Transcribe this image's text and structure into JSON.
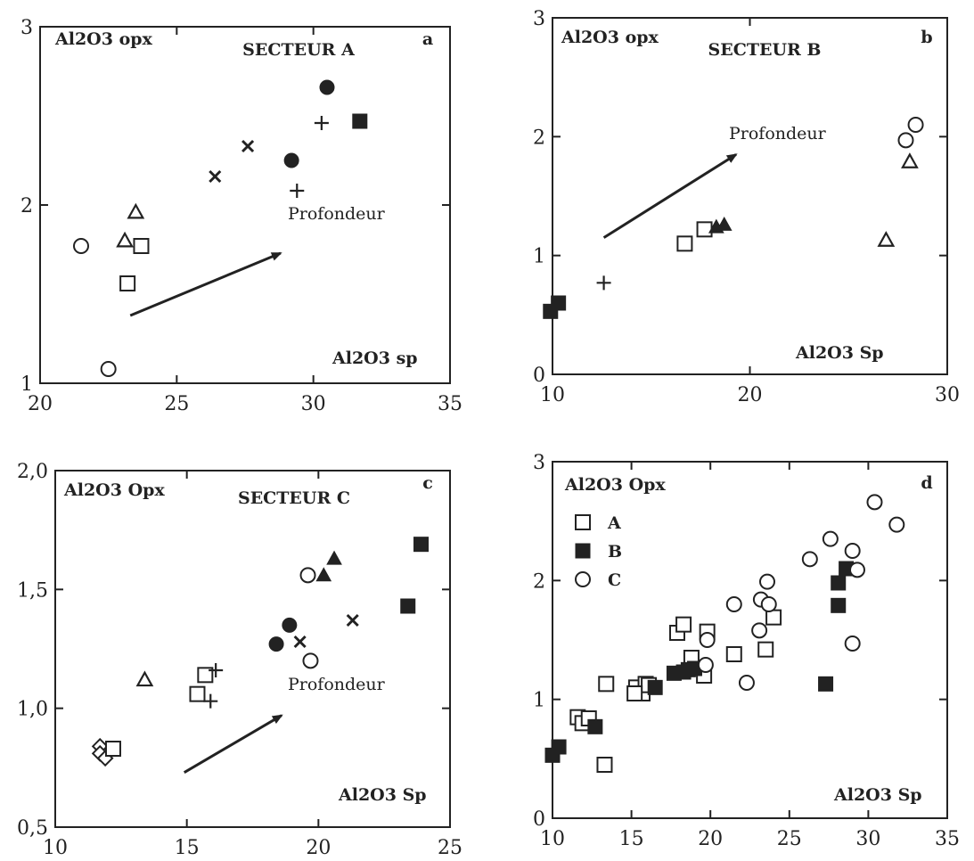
{
  "chart_data": [
    {
      "panel": "a",
      "type": "scatter",
      "title": "SECTEUR A",
      "ylabel": "Al2O3 opx",
      "xlabel": "Al2O3 sp",
      "xlim": [
        20,
        35
      ],
      "ylim": [
        1,
        3
      ],
      "xticks": [
        20,
        25,
        30,
        35
      ],
      "yticks": [
        1,
        2,
        3
      ],
      "xtick_labels": [
        "20",
        "25",
        "30",
        "35"
      ],
      "ytick_labels": [
        "1",
        "2",
        "3"
      ],
      "annotation": "Profondeur",
      "arrow": {
        "from": [
          23.3,
          1.38
        ],
        "to": [
          28.8,
          1.73
        ]
      },
      "points": [
        {
          "marker": "open-circle",
          "x": 21.5,
          "y": 1.77
        },
        {
          "marker": "open-circle",
          "x": 22.5,
          "y": 1.08
        },
        {
          "marker": "open-triangle",
          "x": 23.5,
          "y": 1.96
        },
        {
          "marker": "open-triangle",
          "x": 23.1,
          "y": 1.8
        },
        {
          "marker": "open-square",
          "x": 23.7,
          "y": 1.77
        },
        {
          "marker": "open-square",
          "x": 23.2,
          "y": 1.56
        },
        {
          "marker": "cross-x",
          "x": 26.4,
          "y": 2.16
        },
        {
          "marker": "cross-x",
          "x": 27.6,
          "y": 2.33
        },
        {
          "marker": "plus",
          "x": 29.4,
          "y": 2.08
        },
        {
          "marker": "plus",
          "x": 30.3,
          "y": 2.46
        },
        {
          "marker": "filled-circle",
          "x": 29.2,
          "y": 2.25
        },
        {
          "marker": "filled-circle",
          "x": 30.5,
          "y": 2.66
        },
        {
          "marker": "filled-square",
          "x": 31.7,
          "y": 2.47
        }
      ]
    },
    {
      "panel": "b",
      "type": "scatter",
      "title": "SECTEUR B",
      "ylabel": "Al2O3 opx",
      "xlabel": "Al2O3 Sp",
      "xlim": [
        10,
        30
      ],
      "ylim": [
        0,
        3
      ],
      "xticks": [
        10,
        20,
        30
      ],
      "yticks": [
        0,
        1,
        2,
        3
      ],
      "xtick_labels": [
        "10",
        "20",
        "30"
      ],
      "ytick_labels": [
        "0",
        "1",
        "2",
        "3"
      ],
      "annotation": "Profondeur",
      "arrow": {
        "from": [
          12.6,
          1.15
        ],
        "to": [
          19.3,
          1.85
        ]
      },
      "points": [
        {
          "marker": "filled-square",
          "x": 9.9,
          "y": 0.53
        },
        {
          "marker": "filled-square",
          "x": 10.3,
          "y": 0.6
        },
        {
          "marker": "plus",
          "x": 12.6,
          "y": 0.77
        },
        {
          "marker": "open-square",
          "x": 16.7,
          "y": 1.1
        },
        {
          "marker": "open-square",
          "x": 17.7,
          "y": 1.22
        },
        {
          "marker": "filled-triangle",
          "x": 18.3,
          "y": 1.24
        },
        {
          "marker": "filled-triangle",
          "x": 18.7,
          "y": 1.26
        },
        {
          "marker": "open-triangle",
          "x": 26.9,
          "y": 1.13
        },
        {
          "marker": "open-circle",
          "x": 27.9,
          "y": 1.97
        },
        {
          "marker": "open-circle",
          "x": 28.4,
          "y": 2.1
        },
        {
          "marker": "open-triangle",
          "x": 28.1,
          "y": 1.79
        }
      ]
    },
    {
      "panel": "c",
      "type": "scatter",
      "title": "SECTEUR C",
      "ylabel": "Al2O3 Opx",
      "xlabel": "Al2O3 Sp",
      "xlim": [
        10,
        25
      ],
      "ylim": [
        0.5,
        2.0
      ],
      "xticks": [
        10,
        15,
        20,
        25
      ],
      "yticks": [
        0.5,
        1.0,
        1.5,
        2.0
      ],
      "xtick_labels": [
        "10",
        "15",
        "20",
        "25"
      ],
      "ytick_labels": [
        "0,5",
        "1,0",
        "1,5",
        "2,0"
      ],
      "annotation": "Profondeur",
      "arrow": {
        "from": [
          14.9,
          0.73
        ],
        "to": [
          18.6,
          0.97
        ]
      },
      "points": [
        {
          "marker": "open-diamond",
          "x": 11.7,
          "y": 0.84
        },
        {
          "marker": "open-diamond",
          "x": 11.7,
          "y": 0.81
        },
        {
          "marker": "open-diamond",
          "x": 11.9,
          "y": 0.79
        },
        {
          "marker": "open-square",
          "x": 12.2,
          "y": 0.83
        },
        {
          "marker": "open-triangle",
          "x": 13.4,
          "y": 1.12
        },
        {
          "marker": "open-square",
          "x": 15.7,
          "y": 1.14
        },
        {
          "marker": "open-square",
          "x": 15.4,
          "y": 1.06
        },
        {
          "marker": "plus",
          "x": 16.1,
          "y": 1.16
        },
        {
          "marker": "plus",
          "x": 15.9,
          "y": 1.03
        },
        {
          "marker": "filled-circle",
          "x": 18.4,
          "y": 1.27
        },
        {
          "marker": "filled-circle",
          "x": 18.9,
          "y": 1.35
        },
        {
          "marker": "cross-x",
          "x": 19.3,
          "y": 1.28
        },
        {
          "marker": "open-circle",
          "x": 19.7,
          "y": 1.2
        },
        {
          "marker": "open-circle",
          "x": 19.6,
          "y": 1.56
        },
        {
          "marker": "filled-triangle",
          "x": 20.2,
          "y": 1.56
        },
        {
          "marker": "filled-triangle",
          "x": 20.6,
          "y": 1.63
        },
        {
          "marker": "cross-x",
          "x": 21.3,
          "y": 1.37
        },
        {
          "marker": "filled-square",
          "x": 23.4,
          "y": 1.43
        },
        {
          "marker": "filled-square",
          "x": 23.9,
          "y": 1.69
        }
      ]
    },
    {
      "panel": "d",
      "type": "scatter",
      "ylabel": "Al2O3 Opx",
      "xlabel": "Al2O3 Sp",
      "xlim": [
        10,
        35
      ],
      "ylim": [
        0,
        3
      ],
      "xticks": [
        10,
        15,
        20,
        25,
        30,
        35
      ],
      "yticks": [
        0,
        1,
        2,
        3
      ],
      "xtick_labels": [
        "10",
        "15",
        "20",
        "25",
        "30",
        "35"
      ],
      "ytick_labels": [
        "0",
        "1",
        "2",
        "3"
      ],
      "legend": [
        {
          "label": "A",
          "marker": "open-square"
        },
        {
          "label": "B",
          "marker": "filled-square"
        },
        {
          "label": "C",
          "marker": "open-circle"
        }
      ],
      "series": [
        {
          "name": "A",
          "marker": "open-square",
          "points": [
            [
              11.6,
              0.85
            ],
            [
              11.9,
              0.8
            ],
            [
              12.3,
              0.84
            ],
            [
              13.3,
              0.45
            ],
            [
              13.4,
              1.13
            ],
            [
              15.3,
              1.1
            ],
            [
              15.7,
              1.05
            ],
            [
              15.9,
              1.13
            ],
            [
              16.1,
              1.12
            ],
            [
              17.9,
              1.56
            ],
            [
              18.3,
              1.63
            ],
            [
              18.8,
              1.35
            ],
            [
              19.6,
              1.2
            ],
            [
              19.8,
              1.57
            ],
            [
              21.5,
              1.38
            ],
            [
              23.5,
              1.42
            ],
            [
              24.0,
              1.69
            ],
            [
              15.2,
              1.05
            ]
          ]
        },
        {
          "name": "B",
          "marker": "filled-square",
          "points": [
            [
              10.0,
              0.53
            ],
            [
              10.4,
              0.6
            ],
            [
              12.7,
              0.77
            ],
            [
              16.5,
              1.1
            ],
            [
              17.7,
              1.22
            ],
            [
              18.6,
              1.25
            ],
            [
              19.0,
              1.26
            ],
            [
              27.3,
              1.13
            ],
            [
              28.1,
              1.79
            ],
            [
              28.1,
              1.98
            ],
            [
              28.6,
              2.1
            ],
            [
              18.3,
              1.23
            ]
          ]
        },
        {
          "name": "C",
          "marker": "open-circle",
          "points": [
            [
              19.7,
              1.29
            ],
            [
              19.8,
              1.5
            ],
            [
              21.5,
              1.8
            ],
            [
              22.3,
              1.14
            ],
            [
              23.1,
              1.58
            ],
            [
              23.2,
              1.84
            ],
            [
              23.6,
              1.99
            ],
            [
              23.7,
              1.8
            ],
            [
              26.3,
              2.18
            ],
            [
              27.6,
              2.35
            ],
            [
              29.0,
              2.25
            ],
            [
              29.0,
              1.47
            ],
            [
              29.3,
              2.09
            ],
            [
              30.4,
              2.66
            ],
            [
              31.8,
              2.47
            ]
          ]
        }
      ]
    }
  ]
}
